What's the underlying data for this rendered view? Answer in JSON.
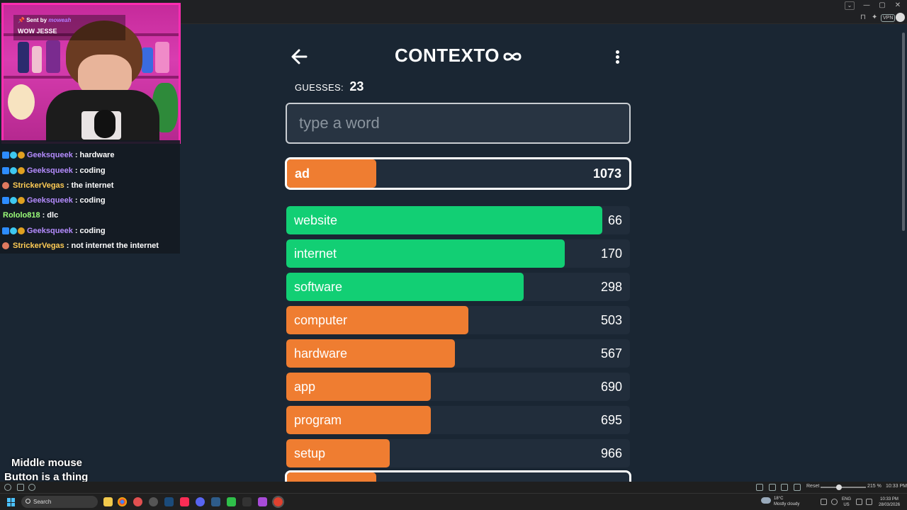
{
  "browser": {
    "window_controls": [
      "—",
      "▢",
      "✕"
    ],
    "tab_menu_icon": "chevron-down-icon",
    "vpn_label": "VPN"
  },
  "stream": {
    "webcam_banner": {
      "sent_by_label": "Sent by",
      "sender": "moweah",
      "message": "WOW JESSE"
    },
    "chat": [
      {
        "user": "Geeksqueek",
        "message": ": hardware",
        "color": "#b58cff",
        "badges": true
      },
      {
        "user": "Geeksqueek",
        "message": ": coding",
        "color": "#b58cff",
        "badges": true
      },
      {
        "user": "StrickerVegas",
        "message": ": the internet",
        "color": "#ffcc55",
        "badges": false
      },
      {
        "user": "Geeksqueek",
        "message": ": coding",
        "color": "#b58cff",
        "badges": true
      },
      {
        "user": "Rololo818",
        "message": ": dlc",
        "color": "#9cff7a",
        "badges": false
      },
      {
        "user": "Geeksqueek",
        "message": ": coding",
        "color": "#b58cff",
        "badges": true
      },
      {
        "user": "StrickerVegas",
        "message": ": not internet the internet",
        "color": "#ffcc55",
        "badges": false
      }
    ],
    "caption": {
      "line1": "Middle mouse",
      "line2": "Button is a thing"
    }
  },
  "game": {
    "title": "CONTEXTO",
    "guesses_label": "GUESSES:",
    "guesses_count": "23",
    "input_placeholder": "type a word",
    "colors": {
      "green": "#12cf74",
      "orange": "#ef7d31",
      "track": "#212d3b"
    },
    "current_guess": {
      "word": "ad",
      "rank": "1073",
      "fill": 0.26,
      "color": "orange"
    },
    "guesses": [
      {
        "word": "website",
        "rank": "66",
        "fill": 0.92,
        "color": "green"
      },
      {
        "word": "internet",
        "rank": "170",
        "fill": 0.81,
        "color": "green"
      },
      {
        "word": "software",
        "rank": "298",
        "fill": 0.69,
        "color": "green"
      },
      {
        "word": "computer",
        "rank": "503",
        "fill": 0.53,
        "color": "orange"
      },
      {
        "word": "hardware",
        "rank": "567",
        "fill": 0.49,
        "color": "orange"
      },
      {
        "word": "app",
        "rank": "690",
        "fill": 0.42,
        "color": "orange"
      },
      {
        "word": "program",
        "rank": "695",
        "fill": 0.42,
        "color": "orange"
      },
      {
        "word": "setup",
        "rank": "966",
        "fill": 0.3,
        "color": "orange"
      }
    ],
    "partial_row_fill": 0.26
  },
  "status_bar": {
    "reset_label": "Reset",
    "zoom": "215 %",
    "time": "10:33 PM"
  },
  "taskbar": {
    "search_placeholder": "Search",
    "weather_temp": "18°C",
    "weather_desc": "Mostly cloudy",
    "language": "ENG",
    "region": "US",
    "time": "10:33 PM",
    "date": "28/03/2026"
  }
}
